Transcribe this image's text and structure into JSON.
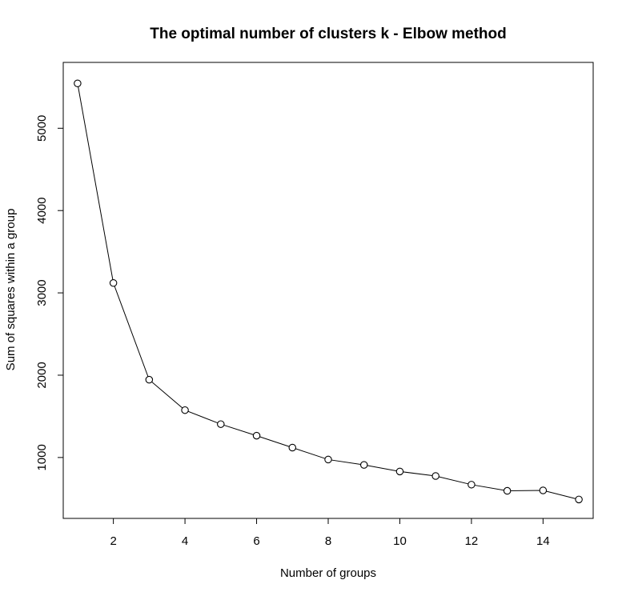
{
  "chart_data": {
    "type": "line",
    "title": "The optimal number of clusters k - Elbow method",
    "xlabel": "Number of groups",
    "ylabel": "Sum of squares within a group",
    "x": [
      1,
      2,
      3,
      4,
      5,
      6,
      7,
      8,
      9,
      10,
      11,
      12,
      13,
      14,
      15
    ],
    "y": [
      5545,
      3120,
      1945,
      1575,
      1405,
      1265,
      1120,
      975,
      910,
      830,
      775,
      670,
      595,
      600,
      490
    ],
    "xlim": [
      0.6,
      15.4
    ],
    "ylim": [
      260,
      5800
    ],
    "xticks": [
      2,
      4,
      6,
      8,
      10,
      12,
      14
    ],
    "yticks": [
      1000,
      2000,
      3000,
      4000,
      5000
    ],
    "markers": "open-circle",
    "grid": false,
    "line_color": "#000000"
  }
}
